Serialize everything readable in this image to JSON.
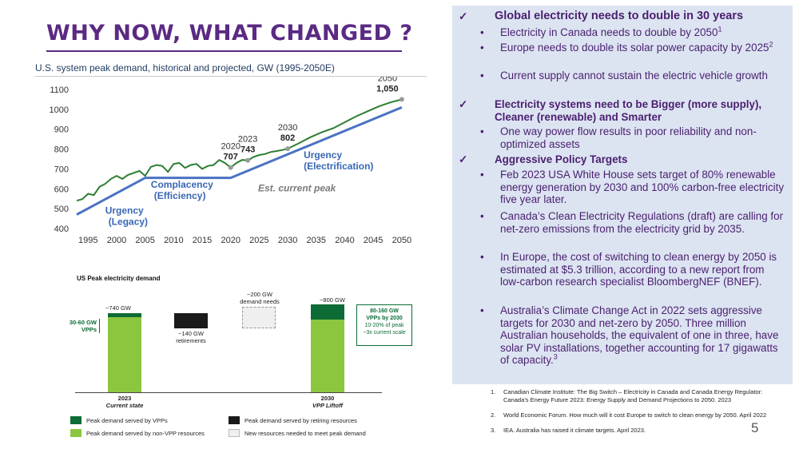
{
  "slide": {
    "title": "WHY NOW, WHAT CHANGED ?",
    "page_number": "5"
  },
  "chart_data": [
    {
      "type": "line",
      "title": "U.S. system peak demand, historical and projected, GW (1995-2050E)",
      "x_ticks": [
        "1995",
        "2000",
        "2005",
        "2010",
        "2015",
        "2020",
        "2025",
        "2030",
        "2035",
        "2040",
        "2045",
        "2050"
      ],
      "y_ticks": [
        "400",
        "500",
        "600",
        "700",
        "800",
        "900",
        "1000",
        "1100"
      ],
      "ylim": [
        400,
        1100
      ],
      "xlim": [
        1993,
        2051
      ],
      "series": [
        {
          "color": "#2e7d32",
          "x": [
            1993,
            1994,
            1995,
            1996,
            1997,
            1998,
            1999,
            2000,
            2001,
            2002,
            2003,
            2004,
            2005,
            2006,
            2007,
            2008,
            2009,
            2010,
            2011,
            2012,
            2013,
            2014,
            2015,
            2016,
            2017,
            2018,
            2019,
            2020,
            2021,
            2022,
            2023,
            2024,
            2025,
            2026,
            2027,
            2028,
            2029,
            2030,
            2032,
            2034,
            2036,
            2038,
            2040,
            2042,
            2044,
            2046,
            2048,
            2050
          ],
          "y": [
            540,
            548,
            575,
            568,
            610,
            625,
            650,
            665,
            650,
            670,
            680,
            690,
            665,
            710,
            720,
            715,
            685,
            725,
            730,
            705,
            720,
            725,
            700,
            715,
            720,
            745,
            730,
            707,
            730,
            745,
            743,
            760,
            770,
            775,
            785,
            790,
            795,
            802,
            830,
            860,
            885,
            905,
            935,
            965,
            990,
            1015,
            1035,
            1050
          ]
        },
        {
          "color": "#4a72c4",
          "x": [
            1993,
            2005,
            2020,
            2050
          ],
          "y": [
            470,
            655,
            655,
            1010
          ]
        }
      ],
      "point_labels": [
        {
          "year": "2020",
          "value": "707",
          "x": 2020,
          "y": 707
        },
        {
          "year": "2023",
          "value": "743",
          "x": 2023,
          "y": 743
        },
        {
          "year": "2030",
          "value": "802",
          "x": 2030,
          "y": 802
        },
        {
          "year": "2050",
          "value": "1,050",
          "x": 2050,
          "y": 1050
        }
      ],
      "annotations": [
        {
          "line1": "Urgency",
          "line2": "(Legacy)"
        },
        {
          "line1": "Complacency",
          "line2": "(Efficiency)"
        },
        {
          "line1": "Est. current peak"
        },
        {
          "line1": "Urgency",
          "line2": "(Electrification)"
        }
      ]
    },
    {
      "type": "bar",
      "title": "US Peak electricity demand",
      "units": "GW",
      "bars": [
        {
          "category": "2023",
          "subtitle": "Current state",
          "vpp": 45,
          "non_vpp": 695,
          "total_label": "~740 GW",
          "side_note": "30-60 GW\nVPPs"
        },
        {
          "category": "retirements",
          "value": 140,
          "label": "~140 GW\nretirements"
        },
        {
          "category": "new demand",
          "value": 200,
          "label": "~200 GW\ndemand needs"
        },
        {
          "category": "2030",
          "subtitle": "VPP Liftoff",
          "vpp": 120,
          "non_vpp": 680,
          "total_label": "~800 GW"
        }
      ],
      "callout": {
        "line1": "80-160 GW",
        "line2": "VPPs by 2030",
        "line3": "10-20% of peak",
        "line4": "~3x current scale"
      },
      "legend": [
        {
          "label": "Peak demand served by VPPs",
          "color": "#0d6b35"
        },
        {
          "label": "Peak demand served by retiring resources",
          "color": "#1a1a1a"
        },
        {
          "label": "Peak demand served by non-VPP resources",
          "color": "#8cc63f"
        },
        {
          "label": "New resources needed to meet peak demand",
          "color": "#efefef"
        }
      ]
    }
  ],
  "panel": {
    "check_icon": "check-mark-icon",
    "sections": [
      {
        "heading": "Global electricity needs to double in 30 years",
        "items": [
          {
            "text": "Electricity in Canada needs to double by 2050",
            "sup": "1"
          },
          {
            "text": "Europe needs to double its solar power capacity by 2025",
            "sup": "2"
          },
          {
            "text": "Current supply cannot sustain the electric vehicle growth",
            "sup": ""
          }
        ]
      },
      {
        "heading": "Electricity systems need to be Bigger (more supply), Cleaner (renewable) and Smarter",
        "items": [
          {
            "text": "One way power flow results in poor reliability and non-optimized assets",
            "sup": ""
          }
        ]
      },
      {
        "heading": "Aggressive Policy Targets",
        "items": [
          {
            "text": "Feb 2023 USA White House sets target of 80% renewable energy generation by 2030 and 100% carbon-free electricity five year later.",
            "sup": ""
          },
          {
            "text": "Canada’s Clean Electricity Regulations (draft) are calling for net-zero emissions from the electricity grid by 2035.",
            "sup": ""
          },
          {
            "text": "In Europe, the cost of switching to clean energy by 2050 is estimated at $5.3 trillion, according to a new report from low-carbon research specialist BloombergNEF (BNEF).",
            "sup": ""
          },
          {
            "text": "Australia’s Climate Change Act in 2022 sets aggressive targets for 2030 and net-zero by 2050. Three million Australian households, the equivalent of one in three, have solar PV installations, together accounting for 17 gigawatts of capacity.",
            "sup": "3"
          }
        ]
      }
    ]
  },
  "footnotes": [
    {
      "num": "1.",
      "text": "Canadian Climate Institute: The Big Switch – Electricity in Canada and Canada Energy Regulator: Canada’s Energy Future 2023: Energy Supply and Demand Projections to 2050. 2023"
    },
    {
      "num": "2.",
      "text": "World Economic Forum. How much will it cost Europe to switch to clean energy by 2050.  April 2022"
    },
    {
      "num": "3.",
      "text": "IEA. Australia has raised it climate targets. April 2023."
    }
  ]
}
